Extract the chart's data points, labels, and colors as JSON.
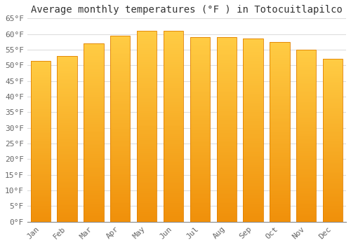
{
  "months": [
    "Jan",
    "Feb",
    "Mar",
    "Apr",
    "May",
    "Jun",
    "Jul",
    "Aug",
    "Sep",
    "Oct",
    "Nov",
    "Dec"
  ],
  "values": [
    51.5,
    53.0,
    57.0,
    59.5,
    61.0,
    61.0,
    59.0,
    59.0,
    58.5,
    57.5,
    55.0,
    52.0
  ],
  "bar_color_top": "#FFCC44",
  "bar_color_bottom": "#F0900A",
  "bar_edge_color": "#E08000",
  "background_color": "#FFFFFF",
  "grid_color": "#DDDDDD",
  "title": "Average monthly temperatures (°F ) in Totocuitlapilco",
  "title_fontsize": 10,
  "tick_label_color": "#666666",
  "ylim": [
    0,
    65
  ],
  "yticks": [
    0,
    5,
    10,
    15,
    20,
    25,
    30,
    35,
    40,
    45,
    50,
    55,
    60,
    65
  ],
  "ytick_labels": [
    "0°F",
    "5°F",
    "10°F",
    "15°F",
    "20°F",
    "25°F",
    "30°F",
    "35°F",
    "40°F",
    "45°F",
    "50°F",
    "55°F",
    "60°F",
    "65°F"
  ]
}
